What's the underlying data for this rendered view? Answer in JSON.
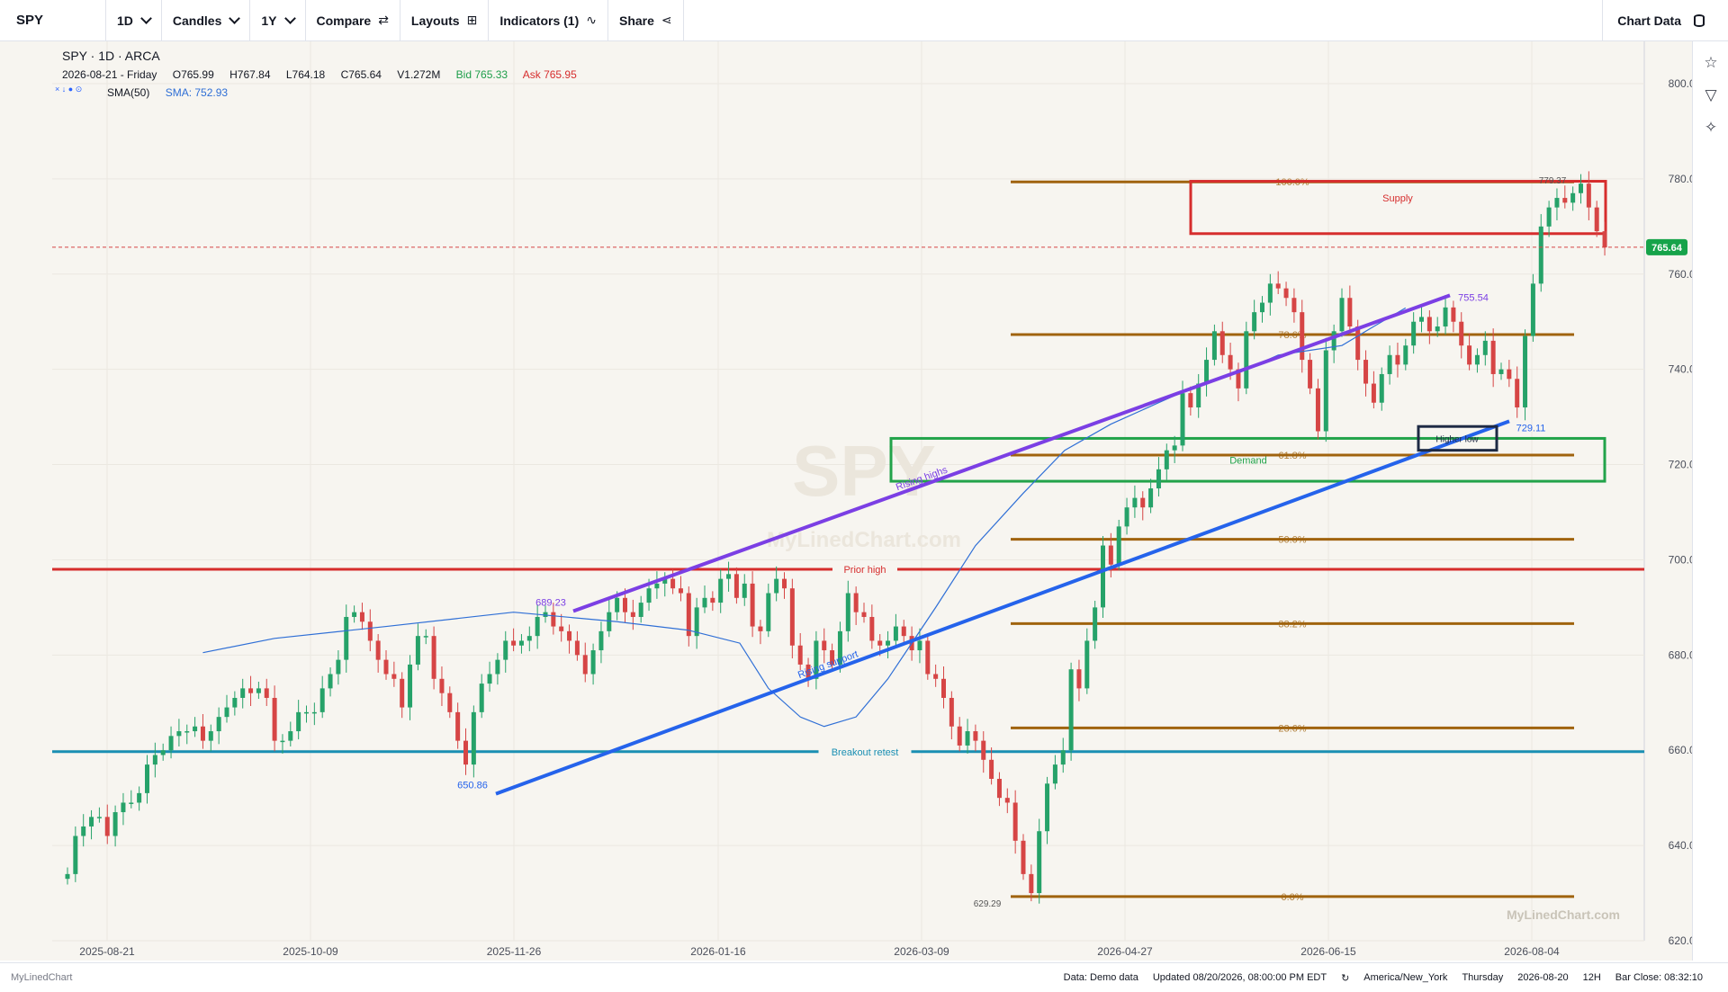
{
  "toolbar": {
    "symbol": "SPY",
    "interval": "1D",
    "chart_type": "Candles",
    "range": "1Y",
    "compare": "Compare",
    "layouts": "Layouts",
    "indicators": "Indicators (1)",
    "share": "Share",
    "chart_data": "Chart Data"
  },
  "legend": {
    "title": "SPY · 1D · ARCA",
    "date": "2026-08-21 - Friday",
    "open": "O765.99",
    "high": "H767.84",
    "low": "L764.18",
    "close": "C765.64",
    "volume": "V1.272M",
    "bid": "Bid 765.33",
    "ask": "Ask 765.95",
    "sma_name": "SMA(50)",
    "sma_value": "SMA: 752.93"
  },
  "statusbar": {
    "brand": "MyLinedChart",
    "data_source": "Data: Demo data",
    "updated": "Updated 08/20/2026, 08:00:00 PM EDT",
    "refresh_icon": "↻",
    "timezone": "America/New_York",
    "weekday": "Thursday",
    "date": "2026-08-20",
    "session": "12H",
    "bar_close": "Bar Close: 08:32:10"
  },
  "side_tools": [
    "star-icon",
    "filter-icon",
    "sparkle-icon"
  ],
  "colors": {
    "background": "#f7f5f0",
    "up": "#26a269",
    "down": "#d64545",
    "sma": "#2f6fd6",
    "fib": "#a0630e",
    "prior_high": "#d62d2d",
    "breakout": "#1a8fb3",
    "rising_highs": "#7b3fe4",
    "rising_support": "#2563eb",
    "supply": "#d62d2d",
    "demand": "#22a34a"
  },
  "chart_data": {
    "type": "candlestick",
    "symbol": "SPY",
    "watermark": "SPY",
    "watermark_brand": "MyLinedChart.com",
    "corner_brand": "MyLinedChart.com",
    "y_ticks": [
      620,
      640,
      660,
      680,
      700,
      720,
      740,
      760,
      780,
      800
    ],
    "ylim": [
      615,
      807
    ],
    "x_ticks": [
      "2025-08-21",
      "2025-10-09",
      "2025-11-26",
      "2026-01-16",
      "2026-03-09",
      "2026-04-27",
      "2026-06-15",
      "2026-08-04"
    ],
    "last_price": 765.64,
    "last_price_label": "765.64",
    "series": [
      {
        "name": "SMA(50)",
        "kind": "line",
        "points": [
          [
            0.085,
            680.5
          ],
          [
            0.13,
            683.5
          ],
          [
            0.2,
            686
          ],
          [
            0.28,
            689
          ],
          [
            0.345,
            687
          ],
          [
            0.39,
            685.2
          ],
          [
            0.422,
            682.5
          ],
          [
            0.44,
            673
          ],
          [
            0.46,
            667
          ],
          [
            0.475,
            665
          ],
          [
            0.495,
            667
          ],
          [
            0.515,
            675
          ],
          [
            0.545,
            690
          ],
          [
            0.57,
            703
          ],
          [
            0.6,
            714
          ],
          [
            0.626,
            723
          ],
          [
            0.655,
            728.5
          ],
          [
            0.685,
            733
          ],
          [
            0.712,
            737
          ],
          [
            0.74,
            740
          ],
          [
            0.76,
            743
          ],
          [
            0.78,
            744
          ],
          [
            0.8,
            745
          ],
          [
            0.82,
            749
          ],
          [
            0.84,
            752.9
          ]
        ]
      },
      {
        "name": "",
        "kind": "close",
        "points": [
          [
            0,
            634
          ],
          [
            0.005,
            642
          ],
          [
            0.01,
            644
          ],
          [
            0.015,
            646
          ],
          [
            0.02,
            646
          ],
          [
            0.025,
            642
          ],
          [
            0.03,
            647
          ],
          [
            0.035,
            649
          ],
          [
            0.04,
            649
          ],
          [
            0.045,
            651
          ],
          [
            0.05,
            657
          ],
          [
            0.055,
            659
          ],
          [
            0.06,
            660
          ],
          [
            0.065,
            663
          ],
          [
            0.07,
            664
          ],
          [
            0.075,
            664
          ],
          [
            0.08,
            665
          ],
          [
            0.085,
            662
          ],
          [
            0.09,
            664
          ],
          [
            0.095,
            667
          ],
          [
            0.1,
            669
          ],
          [
            0.105,
            671
          ],
          [
            0.11,
            673
          ],
          [
            0.115,
            672
          ],
          [
            0.12,
            673
          ],
          [
            0.125,
            671
          ],
          [
            0.13,
            662
          ],
          [
            0.135,
            662
          ],
          [
            0.14,
            664
          ],
          [
            0.145,
            668
          ],
          [
            0.15,
            668
          ],
          [
            0.155,
            668
          ],
          [
            0.16,
            673
          ],
          [
            0.165,
            676
          ],
          [
            0.17,
            679
          ],
          [
            0.175,
            688
          ],
          [
            0.18,
            689
          ],
          [
            0.185,
            687
          ],
          [
            0.19,
            683
          ],
          [
            0.195,
            679
          ],
          [
            0.2,
            676
          ],
          [
            0.205,
            675
          ],
          [
            0.21,
            669
          ],
          [
            0.215,
            678
          ],
          [
            0.22,
            684
          ],
          [
            0.225,
            684
          ],
          [
            0.23,
            675
          ],
          [
            0.235,
            672
          ],
          [
            0.24,
            668
          ],
          [
            0.245,
            662
          ],
          [
            0.25,
            657
          ],
          [
            0.255,
            668
          ],
          [
            0.26,
            674
          ],
          [
            0.265,
            676
          ],
          [
            0.27,
            679
          ],
          [
            0.275,
            683
          ],
          [
            0.28,
            682
          ],
          [
            0.285,
            683
          ],
          [
            0.29,
            684
          ],
          [
            0.295,
            688
          ],
          [
            0.3,
            689
          ],
          [
            0.305,
            686
          ],
          [
            0.31,
            685
          ],
          [
            0.315,
            683
          ],
          [
            0.32,
            680
          ],
          [
            0.325,
            676
          ],
          [
            0.33,
            681
          ],
          [
            0.335,
            685
          ],
          [
            0.34,
            689
          ],
          [
            0.345,
            692
          ],
          [
            0.35,
            689
          ],
          [
            0.355,
            688
          ],
          [
            0.36,
            691
          ],
          [
            0.365,
            694
          ],
          [
            0.37,
            695
          ],
          [
            0.375,
            696
          ],
          [
            0.38,
            694
          ],
          [
            0.385,
            693
          ],
          [
            0.39,
            684
          ],
          [
            0.395,
            690
          ],
          [
            0.4,
            692
          ],
          [
            0.405,
            691
          ],
          [
            0.41,
            696
          ],
          [
            0.415,
            697
          ],
          [
            0.42,
            692
          ],
          [
            0.425,
            695
          ],
          [
            0.43,
            686
          ],
          [
            0.435,
            685
          ],
          [
            0.44,
            693
          ],
          [
            0.445,
            696
          ],
          [
            0.45,
            694
          ],
          [
            0.455,
            682
          ],
          [
            0.46,
            678
          ],
          [
            0.465,
            675
          ],
          [
            0.47,
            683
          ],
          [
            0.475,
            681
          ],
          [
            0.48,
            678
          ],
          [
            0.485,
            685
          ],
          [
            0.49,
            693
          ],
          [
            0.495,
            689
          ],
          [
            0.5,
            688
          ],
          [
            0.505,
            683
          ],
          [
            0.51,
            682
          ],
          [
            0.515,
            683
          ],
          [
            0.52,
            686
          ],
          [
            0.525,
            684
          ],
          [
            0.53,
            681
          ],
          [
            0.535,
            683
          ],
          [
            0.54,
            676
          ],
          [
            0.545,
            675
          ],
          [
            0.55,
            671
          ],
          [
            0.555,
            665
          ],
          [
            0.56,
            661
          ],
          [
            0.565,
            664
          ],
          [
            0.57,
            662
          ],
          [
            0.575,
            658
          ],
          [
            0.58,
            654
          ],
          [
            0.585,
            650
          ],
          [
            0.59,
            649
          ],
          [
            0.595,
            641
          ],
          [
            0.6,
            634
          ],
          [
            0.605,
            630
          ],
          [
            0.61,
            643
          ],
          [
            0.615,
            653
          ],
          [
            0.62,
            657
          ],
          [
            0.625,
            660
          ],
          [
            0.63,
            677
          ],
          [
            0.635,
            673
          ],
          [
            0.64,
            683
          ],
          [
            0.645,
            690
          ],
          [
            0.65,
            703
          ],
          [
            0.655,
            699
          ],
          [
            0.66,
            707
          ],
          [
            0.665,
            711
          ],
          [
            0.67,
            713
          ],
          [
            0.675,
            711
          ],
          [
            0.68,
            715
          ],
          [
            0.685,
            719
          ],
          [
            0.69,
            723
          ],
          [
            0.695,
            724
          ],
          [
            0.7,
            735
          ],
          [
            0.705,
            732
          ],
          [
            0.71,
            737
          ],
          [
            0.715,
            742
          ],
          [
            0.72,
            748
          ],
          [
            0.725,
            743
          ],
          [
            0.73,
            740
          ],
          [
            0.735,
            736
          ],
          [
            0.74,
            748
          ],
          [
            0.745,
            752
          ],
          [
            0.75,
            754
          ],
          [
            0.755,
            758
          ],
          [
            0.76,
            757
          ],
          [
            0.765,
            755
          ],
          [
            0.77,
            752
          ],
          [
            0.775,
            742
          ],
          [
            0.78,
            736
          ],
          [
            0.785,
            727
          ],
          [
            0.79,
            744
          ],
          [
            0.795,
            748
          ],
          [
            0.8,
            755
          ],
          [
            0.805,
            749
          ],
          [
            0.81,
            742
          ],
          [
            0.815,
            737
          ],
          [
            0.82,
            733
          ],
          [
            0.825,
            739
          ],
          [
            0.83,
            743
          ],
          [
            0.835,
            741
          ],
          [
            0.84,
            745
          ],
          [
            0.845,
            750
          ],
          [
            0.85,
            751
          ],
          [
            0.855,
            748
          ],
          [
            0.86,
            749
          ],
          [
            0.865,
            753
          ],
          [
            0.87,
            750
          ],
          [
            0.875,
            745
          ],
          [
            0.88,
            741
          ],
          [
            0.885,
            743
          ],
          [
            0.89,
            746
          ],
          [
            0.895,
            739
          ],
          [
            0.9,
            740
          ],
          [
            0.905,
            738
          ],
          [
            0.91,
            732
          ],
          [
            0.915,
            747
          ],
          [
            0.92,
            758
          ],
          [
            0.925,
            770
          ],
          [
            0.93,
            774
          ],
          [
            0.935,
            776
          ],
          [
            0.94,
            775
          ],
          [
            0.945,
            777
          ],
          [
            0.95,
            779
          ],
          [
            0.955,
            774
          ],
          [
            0.96,
            769
          ],
          [
            0.965,
            765.6
          ]
        ]
      }
    ],
    "fibonacci": {
      "low": 629.29,
      "high": 779.37,
      "levels": [
        {
          "label": "0.0%",
          "value": 629.29
        },
        {
          "label": "23.6%",
          "value": 664.7
        },
        {
          "label": "38.2%",
          "value": 686.6
        },
        {
          "label": "50.0%",
          "value": 704.3
        },
        {
          "label": "61.8%",
          "value": 722.0
        },
        {
          "label": "78.6%",
          "value": 747.3
        },
        {
          "label": "100.0%",
          "value": 779.37
        }
      ]
    },
    "horizontal_lines": [
      {
        "label": "Prior high",
        "value": 698
      },
      {
        "label": "Breakout retest",
        "value": 659.7
      }
    ],
    "trend_lines": [
      {
        "label": "Rising highs",
        "from": [
          "2025-12-02",
          689.23
        ],
        "to": [
          "2026-07-24",
          755.54
        ],
        "start_label": "689.23",
        "end_label": "755.54"
      },
      {
        "label": "Rising support",
        "from": [
          "2025-11-26",
          650.86
        ],
        "to": [
          "2026-07-31",
          729.11
        ],
        "start_label": "650.86",
        "end_label": "729.11"
      }
    ],
    "zones": [
      {
        "label": "Supply",
        "ymin": 768.5,
        "ymax": 779.5
      },
      {
        "label": "Demand",
        "ymin": 716.5,
        "ymax": 725.5
      },
      {
        "label": "Higher low",
        "ymin": 723,
        "ymax": 728
      }
    ],
    "annotations": [
      {
        "label": "779.37",
        "value": 779.37
      },
      {
        "label": "629.29",
        "value": 629.29
      }
    ]
  }
}
